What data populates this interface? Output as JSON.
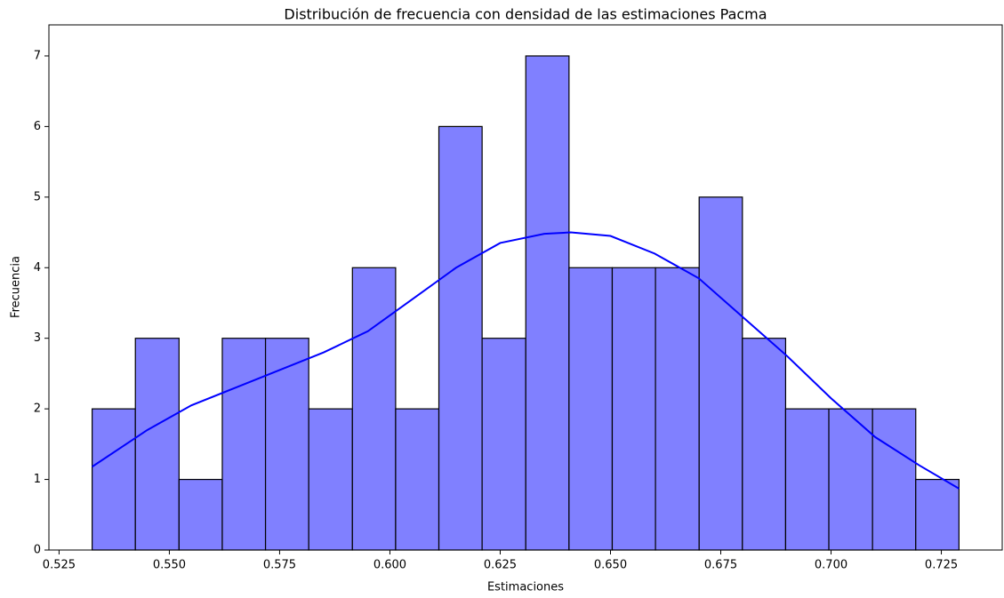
{
  "chart_data": {
    "type": "histogram",
    "title": "Distribución de frecuencia con densidad de las estimaciones Pacma",
    "xlabel": "Estimaciones",
    "ylabel": "Frecuencia",
    "bins": [
      0.5325,
      0.5423,
      0.5522,
      0.562,
      0.5718,
      0.5816,
      0.5915,
      0.6013,
      0.6111,
      0.6209,
      0.6308,
      0.6406,
      0.6504,
      0.6602,
      0.6701,
      0.6799,
      0.6897,
      0.6995,
      0.7094,
      0.7192,
      0.729
    ],
    "counts": [
      2,
      3,
      1,
      3,
      3,
      2,
      4,
      2,
      6,
      3,
      7,
      4,
      4,
      4,
      5,
      3,
      2,
      2,
      2,
      1
    ],
    "color": "#8080ff",
    "edgecolor": "#000000",
    "kde": {
      "color": "#0000ff",
      "x": [
        0.5325,
        0.545,
        0.555,
        0.565,
        0.575,
        0.585,
        0.595,
        0.605,
        0.615,
        0.625,
        0.635,
        0.641,
        0.65,
        0.66,
        0.67,
        0.68,
        0.69,
        0.7,
        0.71,
        0.72,
        0.729
      ],
      "values": [
        1.18,
        1.7,
        2.05,
        2.3,
        2.55,
        2.8,
        3.1,
        3.55,
        4.0,
        4.35,
        4.48,
        4.5,
        4.45,
        4.2,
        3.85,
        3.3,
        2.75,
        2.15,
        1.6,
        1.2,
        0.87
      ]
    },
    "xlim": [
      0.5227,
      0.7388
    ],
    "xticks": [
      {
        "value": 0.525,
        "label": "0.525"
      },
      {
        "value": 0.55,
        "label": "0.550"
      },
      {
        "value": 0.575,
        "label": "0.575"
      },
      {
        "value": 0.6,
        "label": "0.600"
      },
      {
        "value": 0.625,
        "label": "0.625"
      },
      {
        "value": 0.65,
        "label": "0.650"
      },
      {
        "value": 0.675,
        "label": "0.675"
      },
      {
        "value": 0.7,
        "label": "0.700"
      },
      {
        "value": 0.725,
        "label": "0.725"
      }
    ],
    "ylim": [
      0,
      7.44
    ],
    "yticks": [
      0,
      1,
      2,
      3,
      4,
      5,
      6,
      7
    ]
  }
}
